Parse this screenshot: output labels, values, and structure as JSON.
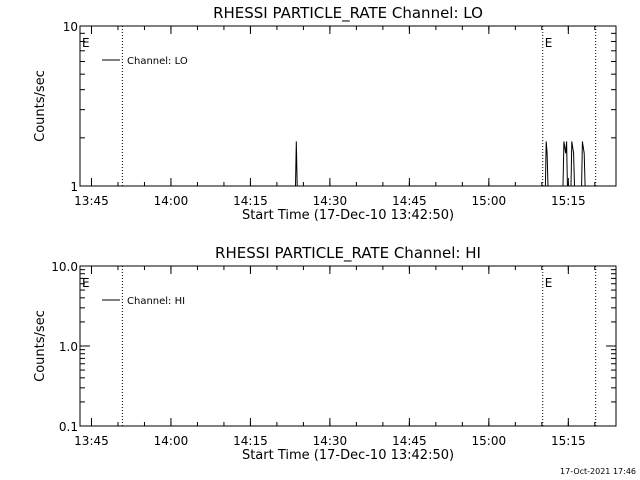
{
  "footer": {
    "timestamp": "17-Oct-2021 17:46"
  },
  "chart_data": [
    {
      "type": "line",
      "title": "RHESSI PARTICLE_RATE Channel: LO",
      "xlabel": "Start Time (17-Dec-10 13:42:50)",
      "ylabel": "Counts/sec",
      "y_scale": "log",
      "ylim": [
        1,
        10
      ],
      "xlim": [
        "13:42:50",
        "15:24:00"
      ],
      "x_ticks": [
        "13:45",
        "14:00",
        "14:15",
        "14:30",
        "14:45",
        "15:00",
        "15:15"
      ],
      "y_ticks": [
        "1",
        "10"
      ],
      "legend": {
        "position": "top-left",
        "entries": [
          "Channel: LO"
        ]
      },
      "event_lines": [
        {
          "time": "13:50:50",
          "label": ""
        },
        {
          "time": "15:10:10",
          "label": "E"
        },
        {
          "time": "15:20:10",
          "label": ""
        }
      ],
      "event_markers": [
        {
          "time": "13:42:50",
          "label": "E"
        }
      ],
      "series": [
        {
          "name": "Channel: LO",
          "points": [
            [
              "14:23:30",
              1
            ],
            [
              "14:23:40",
              1.9
            ],
            [
              "14:23:50",
              1
            ],
            [
              "15:10:40",
              1
            ],
            [
              "15:10:50",
              1.9
            ],
            [
              "15:11:00",
              1.6
            ],
            [
              "15:11:10",
              1
            ],
            [
              "15:14:00",
              1
            ],
            [
              "15:14:10",
              1.9
            ],
            [
              "15:14:30",
              1.6
            ],
            [
              "15:14:40",
              1.9
            ],
            [
              "15:14:50",
              1
            ],
            [
              "15:15:30",
              1
            ],
            [
              "15:15:40",
              1.9
            ],
            [
              "15:16:00",
              1.6
            ],
            [
              "15:16:10",
              1
            ],
            [
              "15:17:30",
              1
            ],
            [
              "15:17:40",
              1.9
            ],
            [
              "15:18:00",
              1.6
            ],
            [
              "15:18:10",
              1
            ]
          ]
        }
      ]
    },
    {
      "type": "line",
      "title": "RHESSI PARTICLE_RATE Channel: HI",
      "xlabel": "Start Time (17-Dec-10 13:42:50)",
      "ylabel": "Counts/sec",
      "y_scale": "log",
      "ylim": [
        0.1,
        10
      ],
      "xlim": [
        "13:42:50",
        "15:24:00"
      ],
      "x_ticks": [
        "13:45",
        "14:00",
        "14:15",
        "14:30",
        "14:45",
        "15:00",
        "15:15"
      ],
      "y_ticks": [
        "0.1",
        "1.0",
        "10.0"
      ],
      "legend": {
        "position": "top-left",
        "entries": [
          "Channel: HI"
        ]
      },
      "event_lines": [
        {
          "time": "13:50:50",
          "label": ""
        },
        {
          "time": "15:10:10",
          "label": "E"
        },
        {
          "time": "15:20:10",
          "label": ""
        }
      ],
      "event_markers": [
        {
          "time": "13:42:50",
          "label": "E"
        }
      ],
      "series": [
        {
          "name": "Channel: HI",
          "points": []
        }
      ]
    }
  ]
}
